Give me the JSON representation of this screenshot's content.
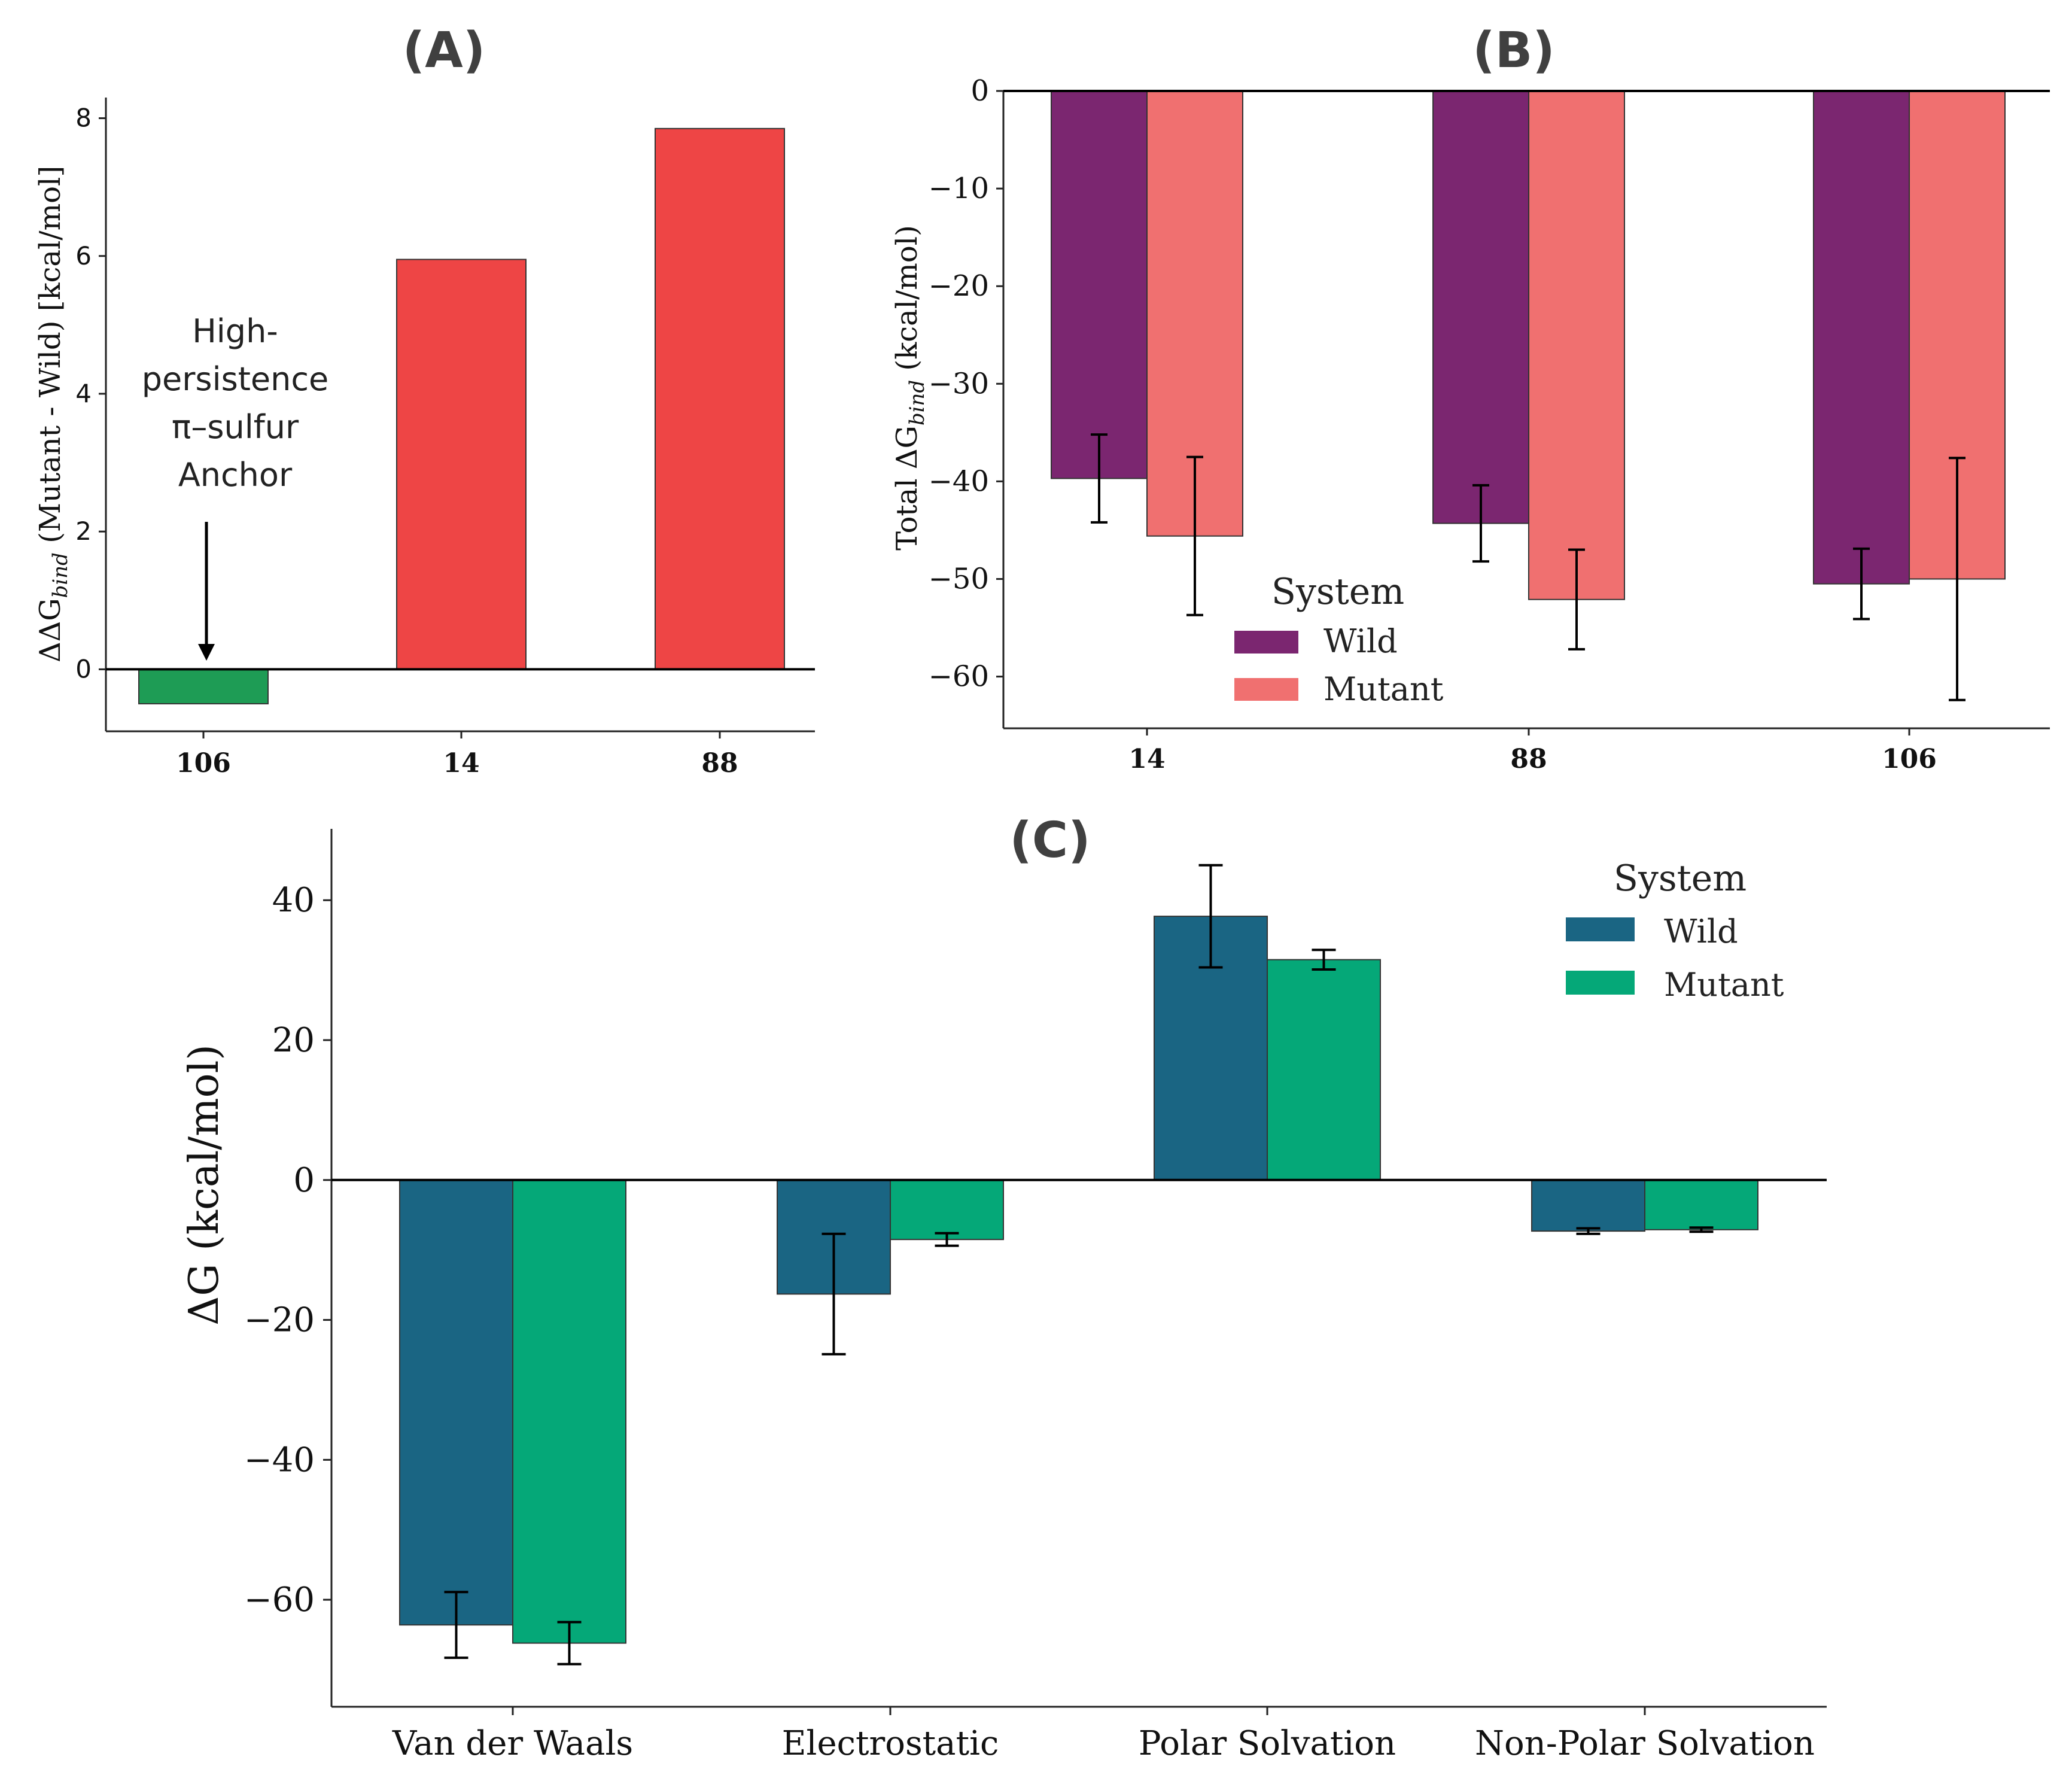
{
  "chart_data": [
    {
      "panel": "A",
      "type": "bar",
      "title": "(A)",
      "ylabel_prefix": "ΔΔG",
      "ylabel_sub": "bind",
      "ylabel_suffix": " (Mutant - Wild) [kcal/mol]",
      "categories": [
        "106",
        "14",
        "88"
      ],
      "values": [
        -0.5,
        5.95,
        7.85
      ],
      "colors": [
        "#1e9c55",
        "#ee4545",
        "#ee4545"
      ],
      "ylim": [
        -0.9,
        8.3
      ],
      "yticks": [
        0,
        2,
        4,
        6,
        8
      ],
      "annotation": {
        "lines": [
          "High-",
          "persistence",
          "π–sulfur",
          "Anchor"
        ],
        "target_category": "106"
      }
    },
    {
      "panel": "B",
      "type": "bar",
      "title": "(B)",
      "ylabel_prefix": "Total ΔG",
      "ylabel_sub": "bind",
      "ylabel_suffix": " (kcal/mol)",
      "categories": [
        "14",
        "88",
        "106"
      ],
      "series": [
        {
          "name": "Wild",
          "color": "#7b2670",
          "values": [
            -39.7,
            -44.3,
            -50.5
          ],
          "errors": [
            4.5,
            3.9,
            3.6
          ]
        },
        {
          "name": "Mutant",
          "color": "#f07070",
          "values": [
            -45.6,
            -52.1,
            -50.0
          ],
          "errors": [
            8.1,
            5.1,
            12.4
          ]
        }
      ],
      "ylim": [
        -65.3,
        0
      ],
      "yticks": [
        0,
        -10,
        -20,
        -30,
        -40,
        -50,
        -60
      ],
      "legend": {
        "title": "System",
        "position": "lower-left"
      }
    },
    {
      "panel": "C",
      "type": "bar",
      "title": "(C)",
      "ylabel": "ΔG (kcal/mol)",
      "categories": [
        "Van der Waals",
        "Electrostatic",
        "Polar Solvation",
        "Non-Polar Solvation"
      ],
      "series": [
        {
          "name": "Wild",
          "color": "#1a6583",
          "values": [
            -63.6,
            -16.3,
            37.7,
            -7.3
          ],
          "errors": [
            4.7,
            8.6,
            7.3,
            0.4
          ]
        },
        {
          "name": "Mutant",
          "color": "#05a878",
          "values": [
            -66.2,
            -8.5,
            31.5,
            -7.1
          ],
          "errors": [
            3.0,
            0.9,
            1.4,
            0.3
          ]
        }
      ],
      "ylim": [
        -75.3,
        50.2
      ],
      "yticks": [
        40,
        20,
        0,
        -20,
        -40,
        -60
      ],
      "legend": {
        "title": "System",
        "position": "upper-right"
      }
    }
  ]
}
